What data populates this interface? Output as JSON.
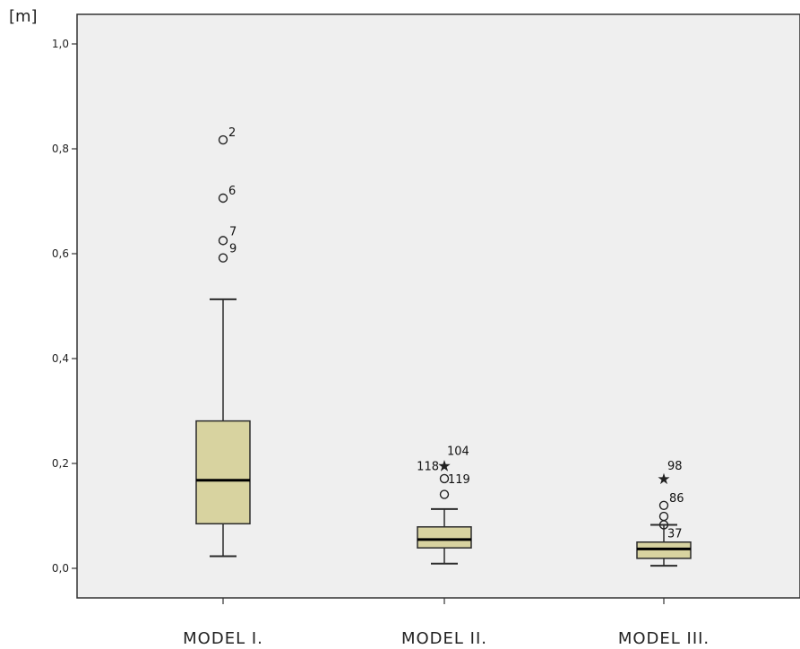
{
  "chart_data": {
    "type": "boxplot",
    "ylabel": "[m]",
    "ylim": [
      0.0,
      1.0
    ],
    "yticks": [
      0.0,
      0.2,
      0.4,
      0.6,
      0.8,
      1.0
    ],
    "ytick_labels": [
      "0,0",
      "0,2",
      "0,4",
      "0,6",
      "0,8",
      "1,0"
    ],
    "categories": [
      "MODEL I.",
      "MODEL II.",
      "MODEL III."
    ],
    "boxes": [
      {
        "category": "MODEL I.",
        "whisker_low": 0.023,
        "q1": 0.085,
        "median": 0.168,
        "q3": 0.281,
        "whisker_high": 0.513,
        "outliers": [
          {
            "label": "2",
            "value": 0.817,
            "marker": "circle"
          },
          {
            "label": "6",
            "value": 0.706,
            "marker": "circle"
          },
          {
            "label": "7",
            "value": 0.625,
            "marker": "circle"
          },
          {
            "label": "9",
            "value": 0.592,
            "marker": "circle"
          }
        ]
      },
      {
        "category": "MODEL II.",
        "whisker_low": 0.009,
        "q1": 0.039,
        "median": 0.055,
        "q3": 0.079,
        "whisker_high": 0.113,
        "outliers": [
          {
            "label": "104",
            "value": 0.196,
            "marker": "star"
          },
          {
            "label": "118",
            "value": 0.196,
            "marker": "star"
          },
          {
            "label": "119",
            "value": 0.171,
            "marker": "circle"
          },
          {
            "label": "",
            "value": 0.141,
            "marker": "circle"
          }
        ]
      },
      {
        "category": "MODEL III.",
        "whisker_low": 0.005,
        "q1": 0.019,
        "median": 0.037,
        "q3": 0.05,
        "whisker_high": 0.083,
        "outliers": [
          {
            "label": "98",
            "value": 0.171,
            "marker": "star"
          },
          {
            "label": "86",
            "value": 0.12,
            "marker": "circle"
          },
          {
            "label": "",
            "value": 0.099,
            "marker": "circle"
          },
          {
            "label": "37",
            "value": 0.083,
            "marker": "circle"
          }
        ]
      }
    ],
    "colors": {
      "plot_bg": "#efefef",
      "box_fill": "#d8d3a0",
      "box_stroke": "#2b2b2b",
      "axis": "#333333"
    }
  }
}
